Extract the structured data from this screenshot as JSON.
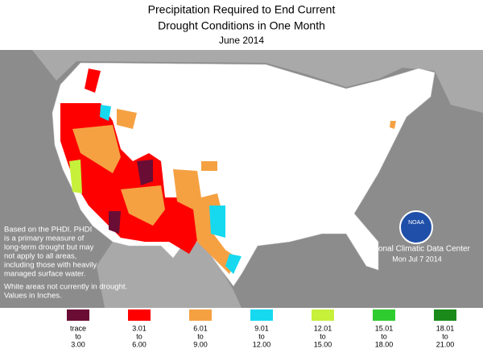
{
  "header": {
    "title": [
      "Precipitation Required to End Current",
      "Drought Conditions in One Month"
    ],
    "date": "June 2014"
  },
  "note": {
    "lines": [
      "Based on the PHDI. PHDI",
      "is a primary measure of",
      "long-term drought but may",
      "not apply to all areas,",
      "including those with heavily",
      "managed surface water."
    ],
    "white_lines": [
      "White areas not currently in drought.",
      "Values in Inches."
    ]
  },
  "credit": {
    "org": "National Climatic Data Center",
    "stamp": "Mon Jul  7 2014",
    "logo": "NOAA"
  },
  "legend": [
    {
      "lines": [
        "trace",
        "to",
        "3.00"
      ],
      "color": "#6a0d35"
    },
    {
      "lines": [
        "3.01",
        "to",
        "6.00"
      ],
      "color": "#ff0000"
    },
    {
      "lines": [
        "6.01",
        "to",
        "9.00"
      ],
      "color": "#f5a142"
    },
    {
      "lines": [
        "9.01",
        "to",
        "12.00"
      ],
      "color": "#16d9f0"
    },
    {
      "lines": [
        "12.01",
        "to",
        "15.00"
      ],
      "color": "#c6f03a"
    },
    {
      "lines": [
        "15.01",
        "to",
        "18.00"
      ],
      "color": "#2ecc2e"
    },
    {
      "lines": [
        "18.01",
        "to",
        "21.00"
      ],
      "color": "#1a8a1a"
    }
  ]
}
